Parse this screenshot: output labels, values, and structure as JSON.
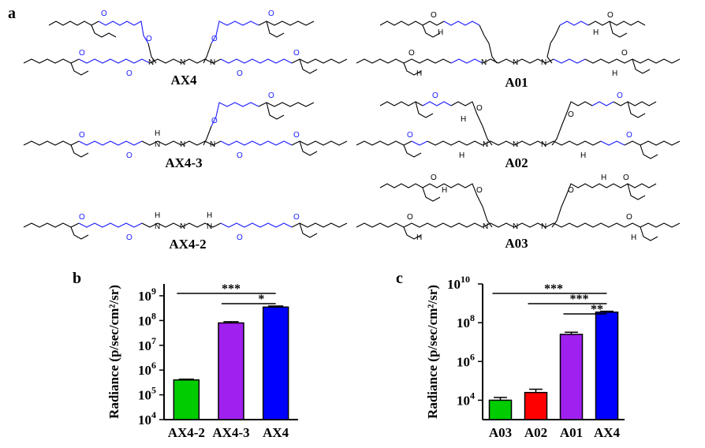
{
  "panels": {
    "a": "a",
    "b": "b",
    "c": "c"
  },
  "molecules": [
    {
      "name": "AX4",
      "label": "AX4"
    },
    {
      "name": "AX4-3",
      "label": "AX4-3"
    },
    {
      "name": "AX4-2",
      "label": "AX4-2"
    },
    {
      "name": "A01",
      "label": "A01"
    },
    {
      "name": "A02",
      "label": "A02"
    },
    {
      "name": "A03",
      "label": "A03"
    }
  ],
  "atoms": {
    "N": "N",
    "H": "H",
    "O": "O"
  },
  "colors": {
    "green": "#00cc00",
    "purple": "#a020f0",
    "blue": "#0000ff",
    "red": "#ff0000",
    "ester": "#1a1aff"
  },
  "chart_data": [
    {
      "id": "b",
      "type": "bar",
      "ylabel": "Radiance (p/sec/cm²/sr)",
      "yscale": "log",
      "ylim": [
        10000,
        3000000000
      ],
      "yticks": [
        {
          "value": 10000,
          "label": "10",
          "exp": "4"
        },
        {
          "value": 100000,
          "label": "10",
          "exp": "5"
        },
        {
          "value": 1000000,
          "label": "10",
          "exp": "6"
        },
        {
          "value": 10000000,
          "label": "10",
          "exp": "7"
        },
        {
          "value": 100000000,
          "label": "10",
          "exp": "8"
        },
        {
          "value": 1000000000,
          "label": "10",
          "exp": "9"
        }
      ],
      "categories": [
        "AX4-2",
        "AX4-3",
        "AX4"
      ],
      "values": [
        400000,
        80000000,
        350000000
      ],
      "errors": [
        30000,
        10000000,
        35000000
      ],
      "colors": [
        "#00cc00",
        "#a020f0",
        "#0000ff"
      ],
      "significance": [
        {
          "from": 0,
          "to": 2,
          "label": "***"
        },
        {
          "from": 1,
          "to": 2,
          "label": "*"
        }
      ]
    },
    {
      "id": "c",
      "type": "bar",
      "ylabel": "Radiance (p/sec/cm²/sr)",
      "yscale": "log",
      "ylim": [
        1000,
        10000000000
      ],
      "yticks": [
        {
          "value": 10000,
          "label": "10",
          "exp": "4"
        },
        {
          "value": 1000000,
          "label": "10",
          "exp": "6"
        },
        {
          "value": 100000000,
          "label": "10",
          "exp": "8"
        },
        {
          "value": 10000000000,
          "label": "10",
          "exp": "10"
        }
      ],
      "categories": [
        "A03",
        "A02",
        "A01",
        "AX4"
      ],
      "values": [
        10000,
        25000,
        25000000,
        350000000
      ],
      "errors": [
        4000,
        12000,
        7000000,
        40000000
      ],
      "colors": [
        "#00cc00",
        "#ff0000",
        "#a020f0",
        "#0000ff"
      ],
      "significance": [
        {
          "from": 0,
          "to": 3,
          "label": "***"
        },
        {
          "from": 1,
          "to": 3,
          "label": "***"
        },
        {
          "from": 2,
          "to": 3,
          "label": "**"
        }
      ]
    }
  ]
}
